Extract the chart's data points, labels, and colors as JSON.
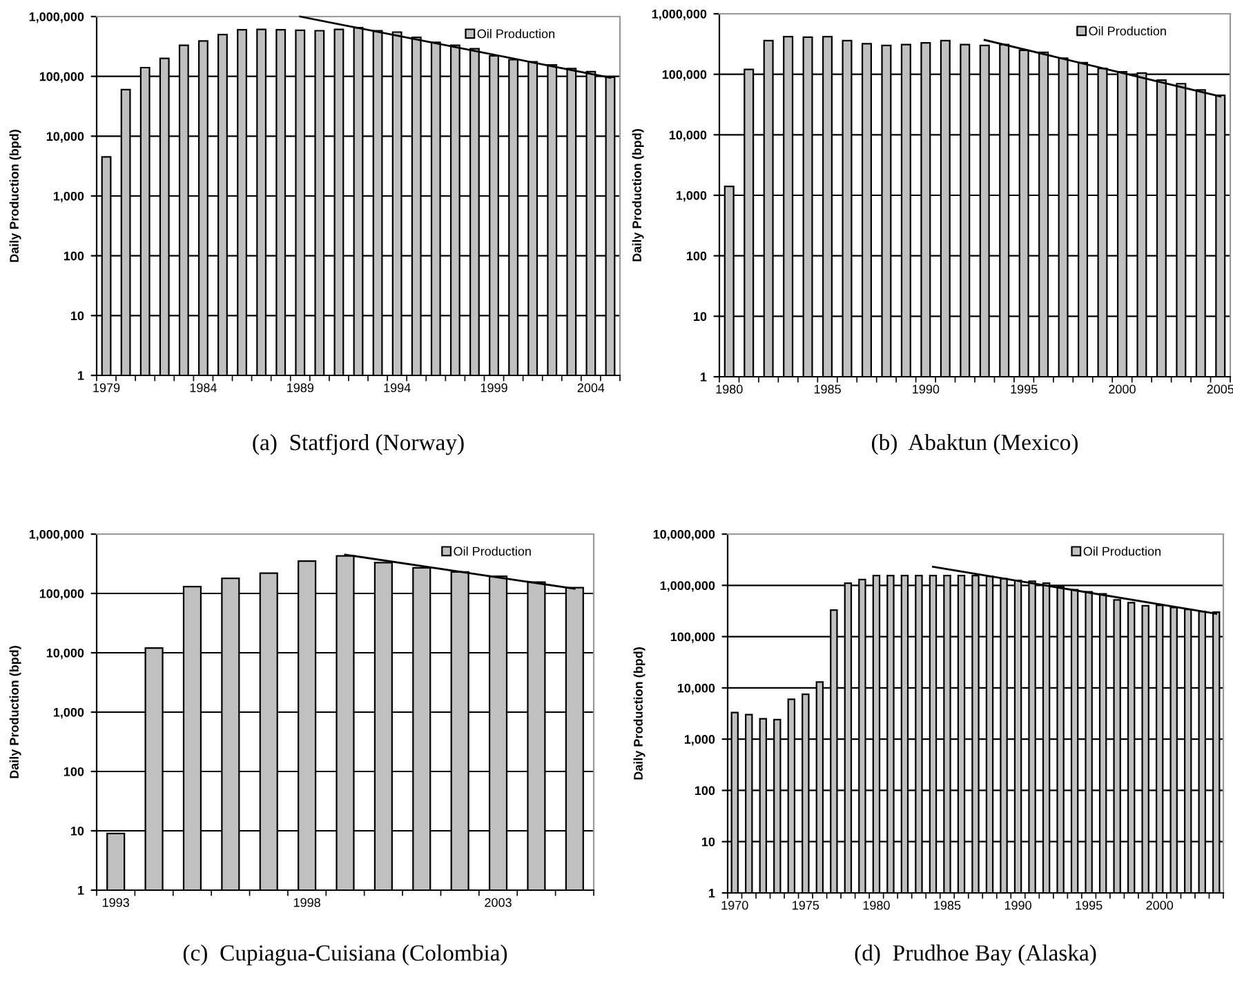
{
  "chart_data": [
    {
      "type": "bar",
      "ylabel": "Daily Production (bpd)",
      "log": "y",
      "grid": "y",
      "legend": "top right",
      "annotations": [
        "(a)  Statfjord (Norway)"
      ],
      "categories": [
        "1979",
        null,
        null,
        null,
        null,
        "1984",
        null,
        null,
        null,
        null,
        "1989",
        null,
        null,
        null,
        null,
        "1994",
        null,
        null,
        null,
        null,
        "1999",
        null,
        null,
        null,
        null,
        "2004",
        null
      ],
      "ylim": [
        1,
        1000000
      ],
      "yticks": [
        1,
        10,
        100,
        {
          "value": 1000,
          "label": "1,000"
        },
        {
          "value": 10000,
          "label": "10,000"
        },
        {
          "value": 100000,
          "label": "100,000"
        },
        {
          "value": 1000000,
          "label": "1,000,000"
        }
      ],
      "series": [
        {
          "name": "Oil Production",
          "color": "#c0c0c0",
          "values": [
            4500,
            60000,
            140000,
            200000,
            330000,
            390000,
            500000,
            600000,
            610000,
            600000,
            590000,
            580000,
            610000,
            650000,
            580000,
            550000,
            450000,
            370000,
            330000,
            290000,
            220000,
            190000,
            175000,
            155000,
            135000,
            120000,
            97000
          ]
        },
        {
          "type": "line",
          "color": "#000000",
          "values": [
            null,
            null,
            null,
            null,
            null,
            null,
            null,
            null,
            null,
            null,
            1000000,
            null,
            null,
            null,
            null,
            null,
            null,
            null,
            null,
            null,
            null,
            null,
            null,
            null,
            null,
            null,
            95000
          ]
        }
      ]
    },
    {
      "type": "bar",
      "ylabel": "Daily Production (bpd)",
      "log": "y",
      "grid": "y",
      "legend": "top right",
      "annotations": [
        "(b)  Abaktun (Mexico)"
      ],
      "categories": [
        "1980",
        null,
        null,
        null,
        null,
        "1985",
        null,
        null,
        null,
        null,
        "1990",
        null,
        null,
        null,
        null,
        "1995",
        null,
        null,
        null,
        null,
        "2000",
        null,
        null,
        null,
        null,
        "2005"
      ],
      "ylim": [
        1,
        1000000
      ],
      "yticks": [
        1,
        10,
        100,
        {
          "value": 1000,
          "label": "1,000"
        },
        {
          "value": 10000,
          "label": "10,000"
        },
        {
          "value": 100000,
          "label": "100,000"
        },
        {
          "value": 1000000,
          "label": "1,000,000"
        }
      ],
      "series": [
        {
          "name": "Oil Production",
          "color": "#c0c0c0",
          "values": [
            1400,
            120000,
            360000,
            420000,
            410000,
            420000,
            360000,
            320000,
            300000,
            310000,
            330000,
            360000,
            310000,
            300000,
            310000,
            250000,
            230000,
            185000,
            155000,
            125000,
            110000,
            105000,
            80000,
            70000,
            55000,
            45000
          ]
        },
        {
          "type": "line",
          "color": "#000000",
          "values": [
            null,
            null,
            null,
            null,
            null,
            null,
            null,
            null,
            null,
            null,
            null,
            null,
            null,
            370000,
            null,
            null,
            null,
            null,
            null,
            null,
            null,
            null,
            null,
            null,
            null,
            43000
          ]
        }
      ]
    },
    {
      "type": "bar",
      "ylabel": "Daily Production (bpd)",
      "log": "y",
      "grid": "y",
      "legend": "top right",
      "annotations": [
        "(c)  Cupiagua-Cuisiana (Colombia)"
      ],
      "categories": [
        "1993",
        null,
        null,
        null,
        null,
        "1998",
        null,
        null,
        null,
        null,
        "2003",
        null,
        null
      ],
      "ylim": [
        1,
        1000000
      ],
      "yticks": [
        1,
        10,
        100,
        {
          "value": 1000,
          "label": "1,000"
        },
        {
          "value": 10000,
          "label": "10,000"
        },
        {
          "value": 100000,
          "label": "100,000"
        },
        {
          "value": 1000000,
          "label": "1,000,000"
        }
      ],
      "series": [
        {
          "name": "Oil Production",
          "color": "#c0c0c0",
          "values": [
            9,
            12000,
            130000,
            180000,
            220000,
            350000,
            430000,
            330000,
            270000,
            230000,
            195000,
            155000,
            125000
          ]
        },
        {
          "type": "line",
          "color": "#000000",
          "values": [
            null,
            null,
            null,
            null,
            null,
            null,
            450000,
            null,
            null,
            null,
            null,
            null,
            120000
          ]
        }
      ]
    },
    {
      "type": "bar",
      "ylabel": "Daily Production (bpd)",
      "log": "y",
      "grid": "y",
      "legend": "top right",
      "annotations": [
        "(d)  Prudhoe Bay (Alaska)"
      ],
      "categories": [
        "1970",
        null,
        null,
        null,
        null,
        "1975",
        null,
        null,
        null,
        null,
        "1980",
        null,
        null,
        null,
        null,
        "1985",
        null,
        null,
        null,
        null,
        "1990",
        null,
        null,
        null,
        null,
        "1995",
        null,
        null,
        null,
        null,
        "2000",
        null,
        null,
        null,
        null
      ],
      "ylim": [
        1,
        10000000
      ],
      "yticks": [
        1,
        10,
        100,
        {
          "value": 1000,
          "label": "1,000"
        },
        {
          "value": 10000,
          "label": "10,000"
        },
        {
          "value": 100000,
          "label": "100,000"
        },
        {
          "value": 1000000,
          "label": "1,000,000"
        },
        {
          "value": 10000000,
          "label": "10,000,000"
        }
      ],
      "series": [
        {
          "name": "Oil Production",
          "color": "#c0c0c0",
          "values": [
            3300,
            3000,
            2500,
            2400,
            6000,
            7500,
            13000,
            330000,
            1100000,
            1300000,
            1550000,
            1550000,
            1550000,
            1550000,
            1550000,
            1550000,
            1550000,
            1550000,
            1500000,
            1350000,
            1250000,
            1200000,
            1100000,
            950000,
            820000,
            750000,
            680000,
            520000,
            460000,
            400000,
            410000,
            370000,
            340000,
            310000,
            300000
          ]
        },
        {
          "type": "line",
          "color": "#000000",
          "values": [
            null,
            null,
            null,
            null,
            null,
            null,
            null,
            null,
            null,
            null,
            null,
            null,
            null,
            null,
            2300000,
            null,
            null,
            null,
            null,
            null,
            null,
            null,
            null,
            null,
            null,
            null,
            null,
            null,
            null,
            null,
            null,
            null,
            null,
            null,
            280000
          ]
        }
      ]
    }
  ]
}
